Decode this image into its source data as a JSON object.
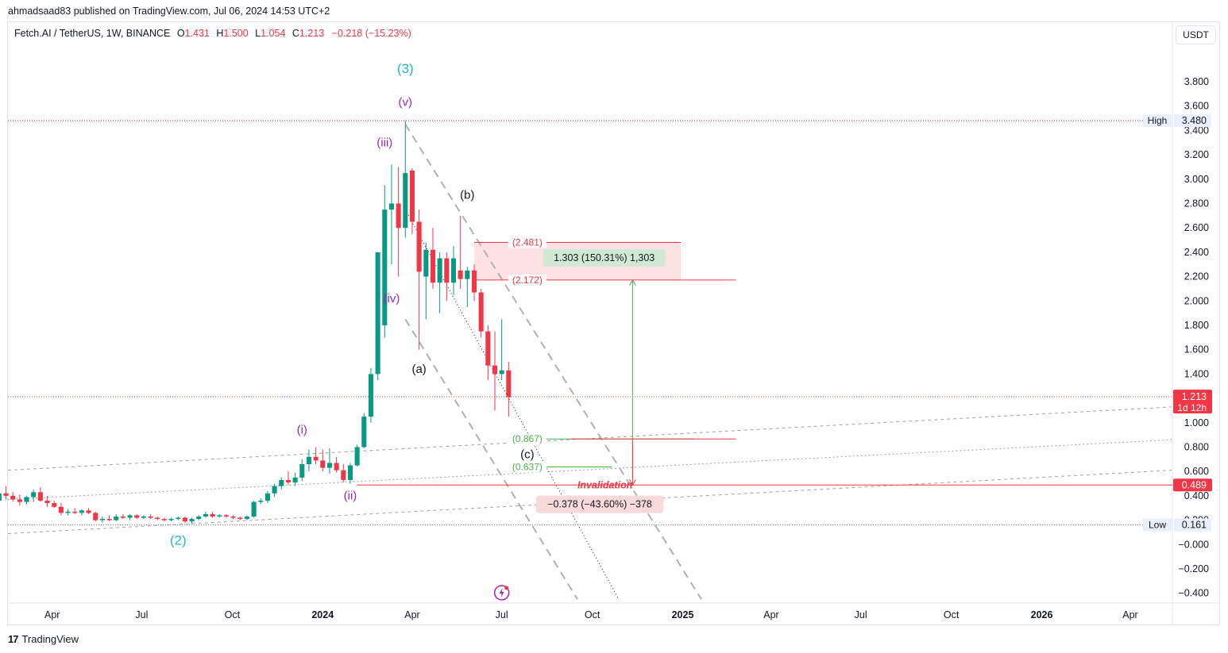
{
  "header": {
    "published_by": "ahmadsaad83 published on TradingView.com, Jul 06, 2024 14:53 UTC+2"
  },
  "legend": {
    "symbol": "Fetch.AI / TetherUS, 1W, BINANCE",
    "open_label": "O",
    "open": "1.431",
    "high_label": "H",
    "high": "1.500",
    "low_label": "L",
    "low": "1.054",
    "close_label": "C",
    "close": "1.213",
    "change": "−0.218 (−15.23%)"
  },
  "currency_button": "USDT",
  "footer": {
    "brand": "TradingView",
    "logo_glyph": "17"
  },
  "colors": {
    "up": "#089981",
    "down": "#f23645",
    "wave_major": "#22b5d6",
    "wave_minor": "#9c27b0",
    "fib_upper": "#f23645",
    "fib_lower": "#4caf50"
  },
  "chart_data": {
    "type": "candlestick",
    "y_axis": {
      "ticks": [
        "3.800",
        "3.600",
        "3.400",
        "3.200",
        "3.000",
        "2.800",
        "2.600",
        "2.400",
        "2.200",
        "2.000",
        "1.800",
        "1.600",
        "1.400",
        "1.000",
        "0.800",
        "0.600",
        "0.400",
        "0.200",
        "−0.000",
        "−0.200",
        "−0.400"
      ],
      "tick_values": [
        3.8,
        3.6,
        3.4,
        3.2,
        3.0,
        2.8,
        2.6,
        2.4,
        2.2,
        2.0,
        1.8,
        1.6,
        1.4,
        1.0,
        0.8,
        0.6,
        0.4,
        0.2,
        0.0,
        -0.2,
        -0.4
      ],
      "range": [
        -0.48,
        4.08
      ]
    },
    "x_axis": {
      "ticks": [
        {
          "label": "Apr",
          "date": "2023-04-01",
          "bold": false
        },
        {
          "label": "Jul",
          "date": "2023-07-01",
          "bold": false
        },
        {
          "label": "Oct",
          "date": "2023-10-01",
          "bold": false
        },
        {
          "label": "2024",
          "date": "2024-01-01",
          "bold": true
        },
        {
          "label": "Apr",
          "date": "2024-04-01",
          "bold": false
        },
        {
          "label": "Jul",
          "date": "2024-07-01",
          "bold": false
        },
        {
          "label": "Oct",
          "date": "2024-10-01",
          "bold": false
        },
        {
          "label": "2025",
          "date": "2025-01-01",
          "bold": true
        },
        {
          "label": "Apr",
          "date": "2025-04-01",
          "bold": false
        },
        {
          "label": "Jul",
          "date": "2025-07-01",
          "bold": false
        },
        {
          "label": "Oct",
          "date": "2025-10-01",
          "bold": false
        },
        {
          "label": "2026",
          "date": "2026-01-01",
          "bold": true
        },
        {
          "label": "Apr",
          "date": "2026-04-01",
          "bold": false
        }
      ]
    },
    "candles": [
      {
        "t": "2023-01-09",
        "o": 0.37,
        "h": 0.45,
        "l": 0.34,
        "c": 0.42
      },
      {
        "t": "2023-01-16",
        "o": 0.42,
        "h": 0.5,
        "l": 0.38,
        "c": 0.45
      },
      {
        "t": "2023-01-23",
        "o": 0.45,
        "h": 0.48,
        "l": 0.36,
        "c": 0.4
      },
      {
        "t": "2023-01-30",
        "o": 0.4,
        "h": 0.44,
        "l": 0.3,
        "c": 0.36
      },
      {
        "t": "2023-02-06",
        "o": 0.36,
        "h": 0.44,
        "l": 0.34,
        "c": 0.42
      },
      {
        "t": "2023-02-13",
        "o": 0.42,
        "h": 0.48,
        "l": 0.37,
        "c": 0.4
      },
      {
        "t": "2023-02-20",
        "o": 0.4,
        "h": 0.43,
        "l": 0.35,
        "c": 0.37
      },
      {
        "t": "2023-02-27",
        "o": 0.37,
        "h": 0.41,
        "l": 0.32,
        "c": 0.35
      },
      {
        "t": "2023-03-06",
        "o": 0.35,
        "h": 0.4,
        "l": 0.33,
        "c": 0.39
      },
      {
        "t": "2023-03-13",
        "o": 0.39,
        "h": 0.45,
        "l": 0.35,
        "c": 0.43
      },
      {
        "t": "2023-03-20",
        "o": 0.43,
        "h": 0.47,
        "l": 0.35,
        "c": 0.36
      },
      {
        "t": "2023-03-27",
        "o": 0.36,
        "h": 0.4,
        "l": 0.31,
        "c": 0.34
      },
      {
        "t": "2023-04-03",
        "o": 0.34,
        "h": 0.36,
        "l": 0.3,
        "c": 0.31
      },
      {
        "t": "2023-04-10",
        "o": 0.31,
        "h": 0.34,
        "l": 0.24,
        "c": 0.26
      },
      {
        "t": "2023-04-17",
        "o": 0.26,
        "h": 0.29,
        "l": 0.24,
        "c": 0.27
      },
      {
        "t": "2023-04-24",
        "o": 0.27,
        "h": 0.3,
        "l": 0.25,
        "c": 0.26
      },
      {
        "t": "2023-05-01",
        "o": 0.26,
        "h": 0.29,
        "l": 0.24,
        "c": 0.28
      },
      {
        "t": "2023-05-08",
        "o": 0.28,
        "h": 0.3,
        "l": 0.25,
        "c": 0.26
      },
      {
        "t": "2023-05-15",
        "o": 0.26,
        "h": 0.27,
        "l": 0.19,
        "c": 0.2
      },
      {
        "t": "2023-05-22",
        "o": 0.2,
        "h": 0.23,
        "l": 0.18,
        "c": 0.21
      },
      {
        "t": "2023-05-29",
        "o": 0.21,
        "h": 0.24,
        "l": 0.19,
        "c": 0.2
      },
      {
        "t": "2023-06-05",
        "o": 0.2,
        "h": 0.25,
        "l": 0.19,
        "c": 0.23
      },
      {
        "t": "2023-06-12",
        "o": 0.23,
        "h": 0.25,
        "l": 0.21,
        "c": 0.22
      },
      {
        "t": "2023-06-19",
        "o": 0.22,
        "h": 0.25,
        "l": 0.2,
        "c": 0.24
      },
      {
        "t": "2023-06-26",
        "o": 0.24,
        "h": 0.25,
        "l": 0.21,
        "c": 0.22
      },
      {
        "t": "2023-07-03",
        "o": 0.22,
        "h": 0.24,
        "l": 0.21,
        "c": 0.23
      },
      {
        "t": "2023-07-10",
        "o": 0.23,
        "h": 0.25,
        "l": 0.21,
        "c": 0.22
      },
      {
        "t": "2023-07-17",
        "o": 0.22,
        "h": 0.23,
        "l": 0.2,
        "c": 0.21
      },
      {
        "t": "2023-07-24",
        "o": 0.21,
        "h": 0.22,
        "l": 0.19,
        "c": 0.2
      },
      {
        "t": "2023-07-31",
        "o": 0.2,
        "h": 0.22,
        "l": 0.19,
        "c": 0.21
      },
      {
        "t": "2023-08-07",
        "o": 0.21,
        "h": 0.23,
        "l": 0.2,
        "c": 0.22
      },
      {
        "t": "2023-08-14",
        "o": 0.22,
        "h": 0.23,
        "l": 0.18,
        "c": 0.19
      },
      {
        "t": "2023-08-21",
        "o": 0.19,
        "h": 0.22,
        "l": 0.17,
        "c": 0.21
      },
      {
        "t": "2023-08-28",
        "o": 0.21,
        "h": 0.24,
        "l": 0.2,
        "c": 0.23
      },
      {
        "t": "2023-09-04",
        "o": 0.23,
        "h": 0.27,
        "l": 0.22,
        "c": 0.25
      },
      {
        "t": "2023-09-11",
        "o": 0.25,
        "h": 0.27,
        "l": 0.22,
        "c": 0.23
      },
      {
        "t": "2023-09-18",
        "o": 0.23,
        "h": 0.25,
        "l": 0.22,
        "c": 0.24
      },
      {
        "t": "2023-09-25",
        "o": 0.24,
        "h": 0.25,
        "l": 0.22,
        "c": 0.23
      },
      {
        "t": "2023-10-02",
        "o": 0.23,
        "h": 0.24,
        "l": 0.21,
        "c": 0.22
      },
      {
        "t": "2023-10-09",
        "o": 0.22,
        "h": 0.23,
        "l": 0.2,
        "c": 0.21
      },
      {
        "t": "2023-10-16",
        "o": 0.21,
        "h": 0.24,
        "l": 0.2,
        "c": 0.23
      },
      {
        "t": "2023-10-23",
        "o": 0.23,
        "h": 0.36,
        "l": 0.22,
        "c": 0.35
      },
      {
        "t": "2023-10-30",
        "o": 0.35,
        "h": 0.38,
        "l": 0.33,
        "c": 0.36
      },
      {
        "t": "2023-11-06",
        "o": 0.36,
        "h": 0.44,
        "l": 0.34,
        "c": 0.42
      },
      {
        "t": "2023-11-13",
        "o": 0.42,
        "h": 0.5,
        "l": 0.39,
        "c": 0.48
      },
      {
        "t": "2023-11-20",
        "o": 0.48,
        "h": 0.55,
        "l": 0.45,
        "c": 0.53
      },
      {
        "t": "2023-11-27",
        "o": 0.53,
        "h": 0.6,
        "l": 0.49,
        "c": 0.51
      },
      {
        "t": "2023-12-04",
        "o": 0.51,
        "h": 0.59,
        "l": 0.48,
        "c": 0.55
      },
      {
        "t": "2023-12-11",
        "o": 0.55,
        "h": 0.7,
        "l": 0.52,
        "c": 0.66
      },
      {
        "t": "2023-12-18",
        "o": 0.66,
        "h": 0.78,
        "l": 0.6,
        "c": 0.72
      },
      {
        "t": "2023-12-25",
        "o": 0.72,
        "h": 0.8,
        "l": 0.66,
        "c": 0.69
      },
      {
        "t": "2024-01-01",
        "o": 0.69,
        "h": 0.78,
        "l": 0.6,
        "c": 0.63
      },
      {
        "t": "2024-01-08",
        "o": 0.63,
        "h": 0.79,
        "l": 0.58,
        "c": 0.67
      },
      {
        "t": "2024-01-15",
        "o": 0.67,
        "h": 0.72,
        "l": 0.59,
        "c": 0.61
      },
      {
        "t": "2024-01-22",
        "o": 0.61,
        "h": 0.66,
        "l": 0.51,
        "c": 0.53
      },
      {
        "t": "2024-01-29",
        "o": 0.53,
        "h": 0.67,
        "l": 0.5,
        "c": 0.65
      },
      {
        "t": "2024-02-05",
        "o": 0.65,
        "h": 0.82,
        "l": 0.64,
        "c": 0.8
      },
      {
        "t": "2024-02-12",
        "o": 0.8,
        "h": 1.08,
        "l": 0.79,
        "c": 1.05
      },
      {
        "t": "2024-02-19",
        "o": 1.05,
        "h": 1.45,
        "l": 1.0,
        "c": 1.4
      },
      {
        "t": "2024-02-26",
        "o": 1.4,
        "h": 2.4,
        "l": 1.35,
        "c": 2.4
      },
      {
        "t": "2024-03-04",
        "o": 1.8,
        "h": 2.95,
        "l": 1.7,
        "c": 2.75
      },
      {
        "t": "2024-03-11",
        "o": 2.75,
        "h": 3.12,
        "l": 2.3,
        "c": 2.8
      },
      {
        "t": "2024-03-18",
        "o": 2.8,
        "h": 3.1,
        "l": 2.2,
        "c": 2.6
      },
      {
        "t": "2024-03-25",
        "o": 2.6,
        "h": 3.48,
        "l": 2.52,
        "c": 3.05
      },
      {
        "t": "2024-04-01",
        "o": 3.07,
        "h": 3.09,
        "l": 2.55,
        "c": 2.65
      },
      {
        "t": "2024-04-08",
        "o": 2.65,
        "h": 2.75,
        "l": 1.6,
        "c": 2.24
      },
      {
        "t": "2024-04-15",
        "o": 2.2,
        "h": 2.48,
        "l": 1.85,
        "c": 2.42
      },
      {
        "t": "2024-04-22",
        "o": 2.42,
        "h": 2.6,
        "l": 2.1,
        "c": 2.15
      },
      {
        "t": "2024-04-29",
        "o": 2.15,
        "h": 2.4,
        "l": 1.9,
        "c": 2.35
      },
      {
        "t": "2024-05-06",
        "o": 2.35,
        "h": 2.4,
        "l": 2.0,
        "c": 2.15
      },
      {
        "t": "2024-05-13",
        "o": 2.15,
        "h": 2.45,
        "l": 2.05,
        "c": 2.35
      },
      {
        "t": "2024-05-20",
        "o": 2.25,
        "h": 2.7,
        "l": 2.1,
        "c": 2.18
      },
      {
        "t": "2024-05-27",
        "o": 2.18,
        "h": 2.28,
        "l": 1.95,
        "c": 2.25
      },
      {
        "t": "2024-06-03",
        "o": 2.25,
        "h": 2.3,
        "l": 2.0,
        "c": 2.07
      },
      {
        "t": "2024-06-10",
        "o": 2.07,
        "h": 2.1,
        "l": 1.7,
        "c": 1.75
      },
      {
        "t": "2024-06-17",
        "o": 1.75,
        "h": 1.8,
        "l": 1.35,
        "c": 1.47
      },
      {
        "t": "2024-06-24",
        "o": 1.47,
        "h": 1.75,
        "l": 1.1,
        "c": 1.4
      },
      {
        "t": "2024-07-01",
        "o": 1.4,
        "h": 1.85,
        "l": 1.35,
        "c": 1.43
      },
      {
        "t": "2024-07-08",
        "o": 1.43,
        "h": 1.5,
        "l": 1.05,
        "c": 1.21
      }
    ],
    "price_levels": [
      {
        "value": 3.48,
        "label": "High",
        "tag": "3.480",
        "style": "dotted",
        "color": "#b22833"
      },
      {
        "value": 1.213,
        "label": "",
        "tag": "1.213",
        "sub": "1d 12h",
        "style": "dotted",
        "color": "#f23645"
      },
      {
        "value": 0.489,
        "label": "Invalidation",
        "tag": "0.489",
        "style": "solid",
        "color": "#f23645"
      },
      {
        "value": 0.161,
        "label": "Low",
        "tag": "0.161",
        "style": "dotted",
        "color": "#787b86"
      }
    ],
    "fib_levels": [
      {
        "value": 2.481,
        "text": "(2.481)",
        "color": "#f23645"
      },
      {
        "value": 2.172,
        "text": "(2.172)",
        "color": "#f23645"
      },
      {
        "value": 0.867,
        "text": "(0.867)",
        "color": "#4caf50"
      },
      {
        "value": 0.637,
        "text": "(0.637)",
        "color": "#4caf50"
      }
    ],
    "measures": [
      {
        "text": "1.303 (150.31%) 1,303",
        "kind": "up"
      },
      {
        "text": "−0.378 (−43.60%) −378",
        "kind": "down"
      }
    ],
    "wave_labels": [
      {
        "text": "(3)",
        "group": "major"
      },
      {
        "text": "(2)",
        "group": "major"
      },
      {
        "text": "(v)",
        "group": "minor"
      },
      {
        "text": "(iii)",
        "group": "minor"
      },
      {
        "text": "(iv)",
        "group": "minor"
      },
      {
        "text": "(i)",
        "group": "minor"
      },
      {
        "text": "(ii)",
        "group": "minor"
      },
      {
        "text": "(a)",
        "group": "corrective"
      },
      {
        "text": "(b)",
        "group": "corrective"
      },
      {
        "text": "(c)",
        "group": "corrective"
      }
    ]
  }
}
